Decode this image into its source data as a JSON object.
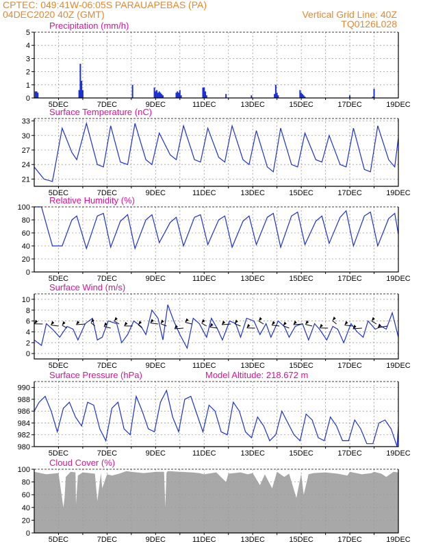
{
  "header": {
    "left_line1": "CPTEC:  049:41W-06:05S  PARAUAPEBAS (PA)",
    "left_line2": "04DEC2020 40Z (GMT)",
    "right_line1": "Vertical Grid Line: 40Z",
    "right_line2": "TQ0126L028"
  },
  "colors": {
    "header": "#e8872a",
    "title": "#e0109a",
    "series": "#1a2fd6",
    "cloud_fill": "#a8a8a8",
    "grid": "#9a9a9a"
  },
  "x_axis": {
    "tick_labels": [
      "5DEC",
      "7DEC",
      "9DEC",
      "11DEC",
      "13DEC",
      "15DEC",
      "17DEC",
      "19DEC"
    ],
    "day_start": 4.0,
    "day_end": 19.0
  },
  "panels": [
    {
      "id": "precip",
      "title": "Precipitation (mm/h)",
      "ylim": [
        0,
        5
      ],
      "yticks": [
        0,
        1,
        2,
        3,
        4,
        5
      ],
      "kind": "bars"
    },
    {
      "id": "temp",
      "title": "Surface Temperature (nC)",
      "ylim": [
        19.5,
        33.5
      ],
      "yticks": [
        21,
        24,
        27,
        30,
        33
      ],
      "kind": "line"
    },
    {
      "id": "rh",
      "title": "Relative Humidity (%)",
      "ylim": [
        0,
        100
      ],
      "yticks": [
        0,
        20,
        40,
        60,
        80,
        100
      ],
      "kind": "line"
    },
    {
      "id": "wind",
      "title": "Surface Wind (m/s)",
      "ylim": [
        -1,
        11
      ],
      "yticks": [
        0,
        2,
        4,
        6,
        8,
        10
      ],
      "kind": "line+arrows"
    },
    {
      "id": "pressure",
      "title": "Surface Pressure (hPa)",
      "extra_label": "Model Altitude: 218.672 m",
      "ylim": [
        980,
        991
      ],
      "yticks": [
        980,
        982,
        984,
        986,
        988,
        990
      ],
      "kind": "line"
    },
    {
      "id": "cloud",
      "title": "Cloud Cover (%)",
      "ylim": [
        0,
        100
      ],
      "yticks": [
        0,
        20,
        40,
        60,
        80,
        100
      ],
      "kind": "area"
    }
  ],
  "chart_data": [
    {
      "type": "bar",
      "title": "Precipitation (mm/h)",
      "ylim": [
        0,
        5
      ],
      "x_units": "day of December 2020",
      "x": [
        4.05,
        4.1,
        4.15,
        5.85,
        5.9,
        5.95,
        6.0,
        8.05,
        8.95,
        9.0,
        9.05,
        9.1,
        9.15,
        9.2,
        9.25,
        9.3,
        9.85,
        9.9,
        9.95,
        10.0,
        10.05,
        10.95,
        11.0,
        11.05,
        11.1,
        11.9,
        12.95,
        13.9,
        13.95,
        14.0,
        14.05,
        14.95,
        15.0,
        15.05,
        15.1,
        15.15,
        17.0,
        17.95,
        18.0
      ],
      "values": [
        0.5,
        0.5,
        0.4,
        0.6,
        2.6,
        1.3,
        0.6,
        1.0,
        0.8,
        0.5,
        0.6,
        0.4,
        0.5,
        0.4,
        0.3,
        0.2,
        0.4,
        0.5,
        0.4,
        0.6,
        0.2,
        0.8,
        0.8,
        0.5,
        0.2,
        0.3,
        0.2,
        0.3,
        1.0,
        0.4,
        0.2,
        0.6,
        0.4,
        0.3,
        0.2,
        0.1,
        0.2,
        0.1,
        0.7
      ]
    },
    {
      "type": "line",
      "title": "Surface Temperature (nC)",
      "ylim": [
        19.5,
        33.5
      ],
      "x_units": "day of December 2020",
      "x": [
        4.0,
        4.4,
        4.75,
        5.15,
        5.55,
        5.75,
        6.15,
        6.6,
        6.85,
        7.15,
        7.55,
        7.85,
        8.15,
        8.6,
        8.85,
        9.15,
        9.6,
        9.85,
        10.15,
        10.6,
        10.85,
        11.15,
        11.6,
        11.85,
        12.15,
        12.6,
        12.85,
        13.15,
        13.6,
        13.85,
        14.15,
        14.6,
        14.85,
        15.15,
        15.6,
        15.85,
        16.15,
        16.6,
        16.85,
        17.15,
        17.6,
        17.85,
        18.15,
        18.6,
        18.85,
        19.0
      ],
      "values": [
        23.5,
        21.0,
        20.5,
        31.5,
        26.5,
        25.0,
        32.5,
        24.0,
        23.5,
        32.0,
        24.5,
        24.0,
        32.5,
        25.0,
        24.0,
        30.5,
        26.0,
        25.0,
        32.0,
        25.0,
        24.5,
        31.5,
        25.5,
        24.5,
        32.0,
        25.0,
        24.0,
        31.0,
        23.5,
        22.5,
        31.5,
        24.0,
        23.5,
        30.5,
        25.0,
        24.5,
        30.0,
        24.0,
        23.5,
        31.5,
        23.0,
        22.5,
        32.0,
        25.0,
        23.5,
        29.5
      ]
    },
    {
      "type": "line",
      "title": "Relative Humidity (%)",
      "ylim": [
        0,
        100
      ],
      "x_units": "day of December 2020",
      "x": [
        4.0,
        4.3,
        4.75,
        5.15,
        5.55,
        5.75,
        6.15,
        6.6,
        6.85,
        7.15,
        7.55,
        7.85,
        8.15,
        8.6,
        8.85,
        9.15,
        9.6,
        9.85,
        10.15,
        10.6,
        10.85,
        11.15,
        11.6,
        11.85,
        12.15,
        12.6,
        12.85,
        13.15,
        13.6,
        13.85,
        14.15,
        14.6,
        14.85,
        15.15,
        15.6,
        15.85,
        16.15,
        16.6,
        16.85,
        17.15,
        17.6,
        17.85,
        18.15,
        18.6,
        18.85,
        19.0
      ],
      "values": [
        100,
        100,
        40,
        40,
        80,
        86,
        36,
        86,
        90,
        38,
        78,
        88,
        36,
        80,
        88,
        45,
        76,
        84,
        40,
        84,
        88,
        42,
        80,
        86,
        38,
        78,
        86,
        42,
        84,
        90,
        38,
        86,
        92,
        42,
        78,
        86,
        44,
        84,
        94,
        40,
        86,
        92,
        40,
        82,
        90,
        58
      ]
    },
    {
      "type": "line",
      "title": "Surface Wind (m/s)",
      "ylim": [
        -1,
        11
      ],
      "x_units": "day of December 2020",
      "x": [
        4.0,
        4.3,
        4.5,
        4.75,
        5.05,
        5.35,
        5.6,
        5.8,
        6.1,
        6.4,
        6.6,
        6.8,
        7.05,
        7.4,
        7.6,
        7.85,
        8.1,
        8.4,
        8.6,
        8.85,
        9.1,
        9.3,
        9.5,
        9.75,
        10.0,
        10.3,
        10.55,
        10.8,
        11.1,
        11.3,
        11.55,
        11.75,
        12.05,
        12.3,
        12.5,
        12.75,
        13.05,
        13.3,
        13.55,
        13.75,
        14.05,
        14.3,
        14.5,
        14.75,
        15.05,
        15.3,
        15.55,
        15.75,
        16.05,
        16.3,
        16.5,
        16.75,
        17.05,
        17.3,
        17.55,
        17.75,
        18.05,
        18.3,
        18.5,
        18.75,
        19.0
      ],
      "values": [
        2.5,
        1.5,
        5.5,
        4.5,
        3.0,
        5.0,
        4.5,
        2.5,
        5.5,
        6.5,
        2.5,
        3.0,
        6.0,
        5.5,
        2.0,
        3.5,
        6.0,
        5.0,
        3.5,
        8.0,
        6.5,
        2.5,
        9.0,
        6.0,
        3.5,
        1.0,
        6.5,
        5.5,
        3.0,
        6.5,
        4.5,
        2.5,
        6.0,
        5.5,
        3.0,
        6.5,
        6.0,
        3.5,
        5.5,
        3.0,
        6.0,
        5.0,
        3.0,
        5.0,
        5.5,
        2.5,
        5.5,
        4.5,
        2.5,
        5.0,
        4.5,
        2.0,
        5.5,
        4.0,
        3.0,
        6.0,
        4.5,
        5.0,
        4.5,
        7.5,
        3.0
      ]
    },
    {
      "type": "line",
      "title": "Surface Pressure (hPa)",
      "ylim": [
        980,
        991
      ],
      "x_units": "day of December 2020",
      "x": [
        4.0,
        4.2,
        4.45,
        4.7,
        4.95,
        5.2,
        5.45,
        5.7,
        5.95,
        6.2,
        6.45,
        6.7,
        6.95,
        7.2,
        7.45,
        7.7,
        7.95,
        8.2,
        8.45,
        8.7,
        8.95,
        9.2,
        9.45,
        9.7,
        9.95,
        10.2,
        10.45,
        10.7,
        10.95,
        11.2,
        11.45,
        11.7,
        11.95,
        12.2,
        12.45,
        12.7,
        12.95,
        13.2,
        13.45,
        13.7,
        13.95,
        14.2,
        14.45,
        14.7,
        14.95,
        15.2,
        15.45,
        15.7,
        15.95,
        16.2,
        16.45,
        16.7,
        16.95,
        17.2,
        17.45,
        17.7,
        17.95,
        18.2,
        18.45,
        18.7,
        18.95,
        19.0
      ],
      "values": [
        986.0,
        987.5,
        988.5,
        986.0,
        982.5,
        986.5,
        987.5,
        985.0,
        983.5,
        987.5,
        987.0,
        983.0,
        981.0,
        986.5,
        987.5,
        983.0,
        982.0,
        988.5,
        986.0,
        983.0,
        982.5,
        987.5,
        989.5,
        985.0,
        982.5,
        988.0,
        988.5,
        985.5,
        982.5,
        987.0,
        986.0,
        982.5,
        982.0,
        987.5,
        986.0,
        982.5,
        981.5,
        985.0,
        983.5,
        981.0,
        982.0,
        986.0,
        984.0,
        982.0,
        981.0,
        985.5,
        984.5,
        981.5,
        981.0,
        985.0,
        983.5,
        981.0,
        981.0,
        984.5,
        983.0,
        980.5,
        980.5,
        984.0,
        984.5,
        983.0,
        980.0,
        983.5
      ]
    },
    {
      "type": "area",
      "title": "Cloud Cover (%)",
      "ylim": [
        0,
        100
      ],
      "x_units": "day of December 2020",
      "x": [
        4.0,
        4.5,
        5.0,
        5.2,
        5.25,
        5.3,
        5.5,
        5.7,
        5.72,
        5.8,
        6.0,
        6.5,
        6.6,
        6.75,
        6.8,
        7.0,
        7.2,
        7.5,
        7.8,
        8.0,
        8.5,
        8.8,
        9.0,
        9.35,
        9.4,
        9.45,
        9.5,
        10.0,
        10.5,
        10.8,
        11.0,
        11.5,
        11.9,
        12.0,
        12.5,
        12.8,
        13.0,
        13.3,
        13.5,
        13.8,
        14.0,
        14.3,
        14.5,
        14.8,
        15.0,
        15.1,
        15.3,
        15.5,
        16.0,
        16.5,
        16.9,
        17.0,
        17.5,
        17.9,
        18.0,
        18.3,
        18.5,
        18.8,
        19.0
      ],
      "values": [
        96,
        92,
        94,
        40,
        55,
        88,
        96,
        95,
        45,
        90,
        95,
        93,
        50,
        94,
        70,
        92,
        90,
        93,
        97,
        96,
        94,
        95,
        96,
        96,
        40,
        95,
        97,
        96,
        95,
        94,
        92,
        95,
        80,
        93,
        95,
        92,
        94,
        75,
        92,
        70,
        96,
        88,
        93,
        55,
        93,
        60,
        92,
        94,
        95,
        93,
        90,
        96,
        92,
        94,
        96,
        93,
        88,
        96,
        95
      ]
    }
  ]
}
